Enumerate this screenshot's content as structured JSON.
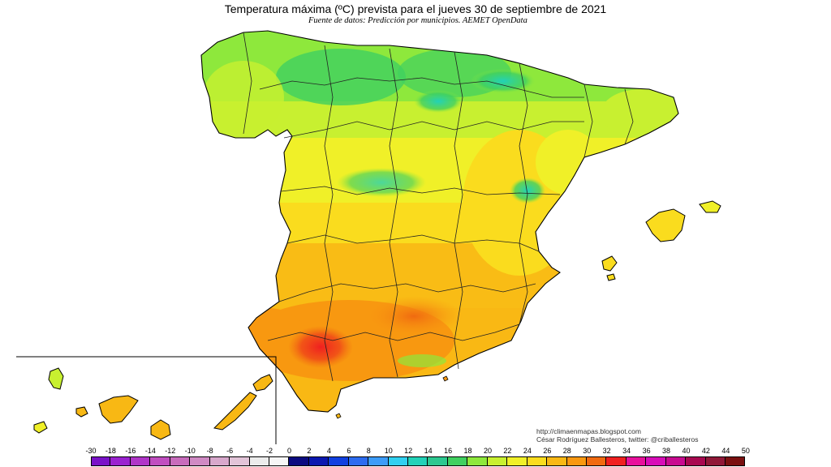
{
  "header": {
    "title": "Temperatura máxima (ºC) prevista para el jueves 30 de septiembre de 2021",
    "subtitle": "Fuente de datos: Predicción por municipios. AEMET OpenData"
  },
  "credits": {
    "blog": "http://climaenmapas.blogspot.com",
    "author": "César Rodríguez Ballesteros, twitter: @criballesteros"
  },
  "legend": {
    "ticks": [
      "-30",
      "-18",
      "-16",
      "-14",
      "-12",
      "-10",
      "-8",
      "-6",
      "-4",
      "-2",
      "0",
      "2",
      "4",
      "6",
      "8",
      "10",
      "12",
      "14",
      "16",
      "18",
      "20",
      "22",
      "24",
      "26",
      "28",
      "30",
      "32",
      "34",
      "36",
      "38",
      "40",
      "42",
      "44",
      "50"
    ],
    "colors": [
      "#7a12c8",
      "#9a22d0",
      "#b035c8",
      "#c04ec0",
      "#c86cbc",
      "#d08ac4",
      "#d8a8cc",
      "#e2c4d8",
      "#ececec",
      "#f6f6f6",
      "#0a0a80",
      "#0a18b0",
      "#1040e0",
      "#2c6cf0",
      "#3c9cf8",
      "#30d0f0",
      "#22d2b8",
      "#2cc890",
      "#40d060",
      "#8ee83c",
      "#c8f030",
      "#f0f028",
      "#fadc1e",
      "#f8b814",
      "#f89810",
      "#f06a10",
      "#f02020",
      "#e8109c",
      "#d80cb8",
      "#c80a90",
      "#a80850",
      "#901838",
      "#7a1010"
    ]
  },
  "map": {
    "region": "España peninsular, Baleares y Canarias",
    "color_scale": "temperatura máxima (ºC)",
    "dominant_colors": {
      "north_coast": "#40d060",
      "center": "#f0f028",
      "south": "#f89810",
      "hot_spot": "#f02020"
    }
  }
}
